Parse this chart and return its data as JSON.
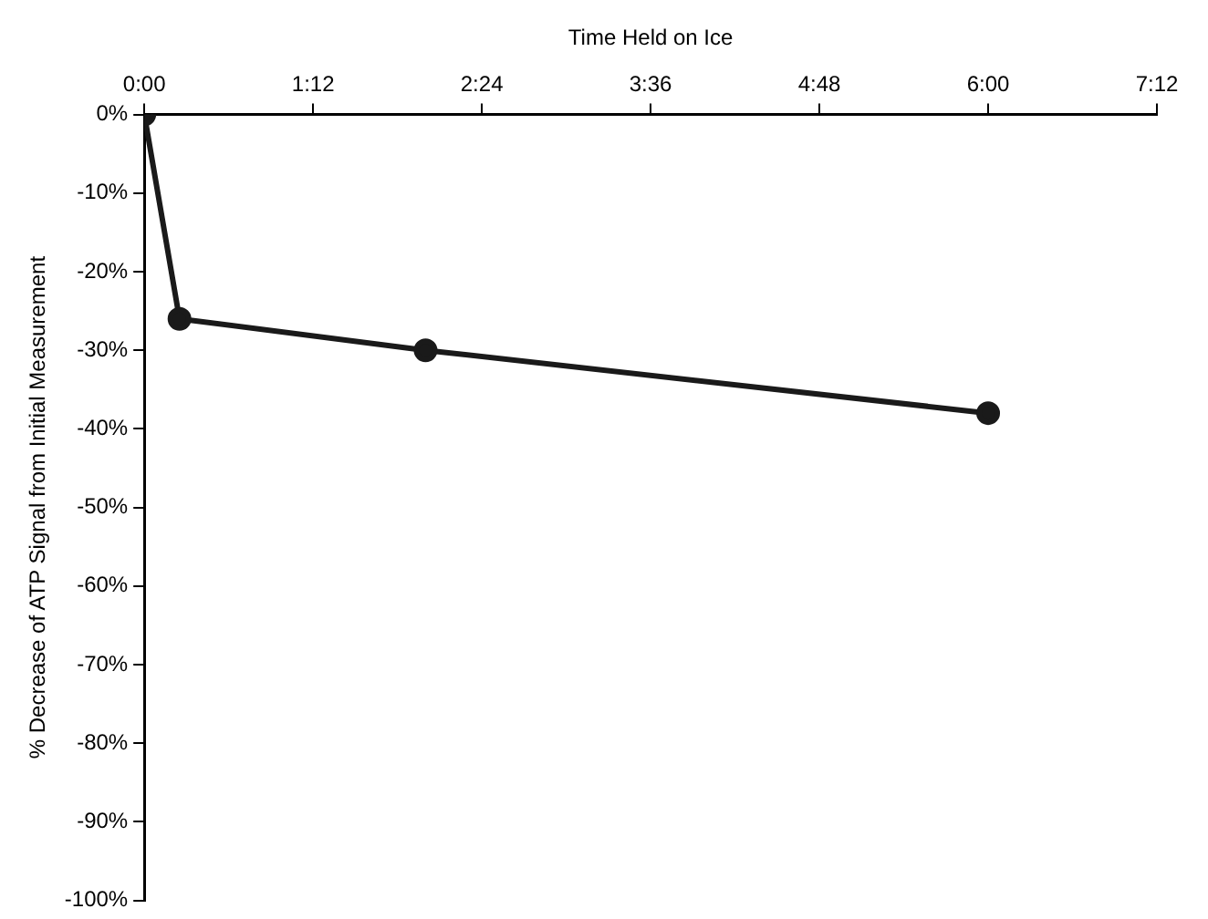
{
  "chart_data": {
    "type": "line",
    "xlabel": "Time Held on Ice",
    "ylabel": "% Decrease of ATP Signal from Initial Measurement",
    "x": [
      0,
      0.25,
      2,
      6
    ],
    "series": [
      {
        "color": "#1a1a1a",
        "values": [
          0,
          -26,
          -30,
          -38
        ]
      }
    ],
    "xlim": [
      0,
      7.2
    ],
    "xticks": [
      {
        "value": 0,
        "label": "0:00"
      },
      {
        "value": 1.2,
        "label": "1:12"
      },
      {
        "value": 2.4,
        "label": "2:24"
      },
      {
        "value": 3.6,
        "label": "3:36"
      },
      {
        "value": 4.8,
        "label": "4:48"
      },
      {
        "value": 6,
        "label": "6:00"
      },
      {
        "value": 7.2,
        "label": "7:12"
      }
    ],
    "ylim": [
      -100,
      0
    ],
    "yticks": [
      {
        "value": 0,
        "label": "0%"
      },
      {
        "value": -10,
        "label": "-10%"
      },
      {
        "value": -20,
        "label": "-20%"
      },
      {
        "value": -30,
        "label": "-30%"
      },
      {
        "value": -40,
        "label": "-40%"
      },
      {
        "value": -50,
        "label": "-50%"
      },
      {
        "value": -60,
        "label": "-60%"
      },
      {
        "value": -70,
        "label": "-70%"
      },
      {
        "value": -80,
        "label": "-80%"
      },
      {
        "value": -90,
        "label": "-90%"
      },
      {
        "value": -100,
        "label": "-100%"
      }
    ],
    "grid": false,
    "legend": false,
    "marker": "circle",
    "line_style": "solid"
  }
}
